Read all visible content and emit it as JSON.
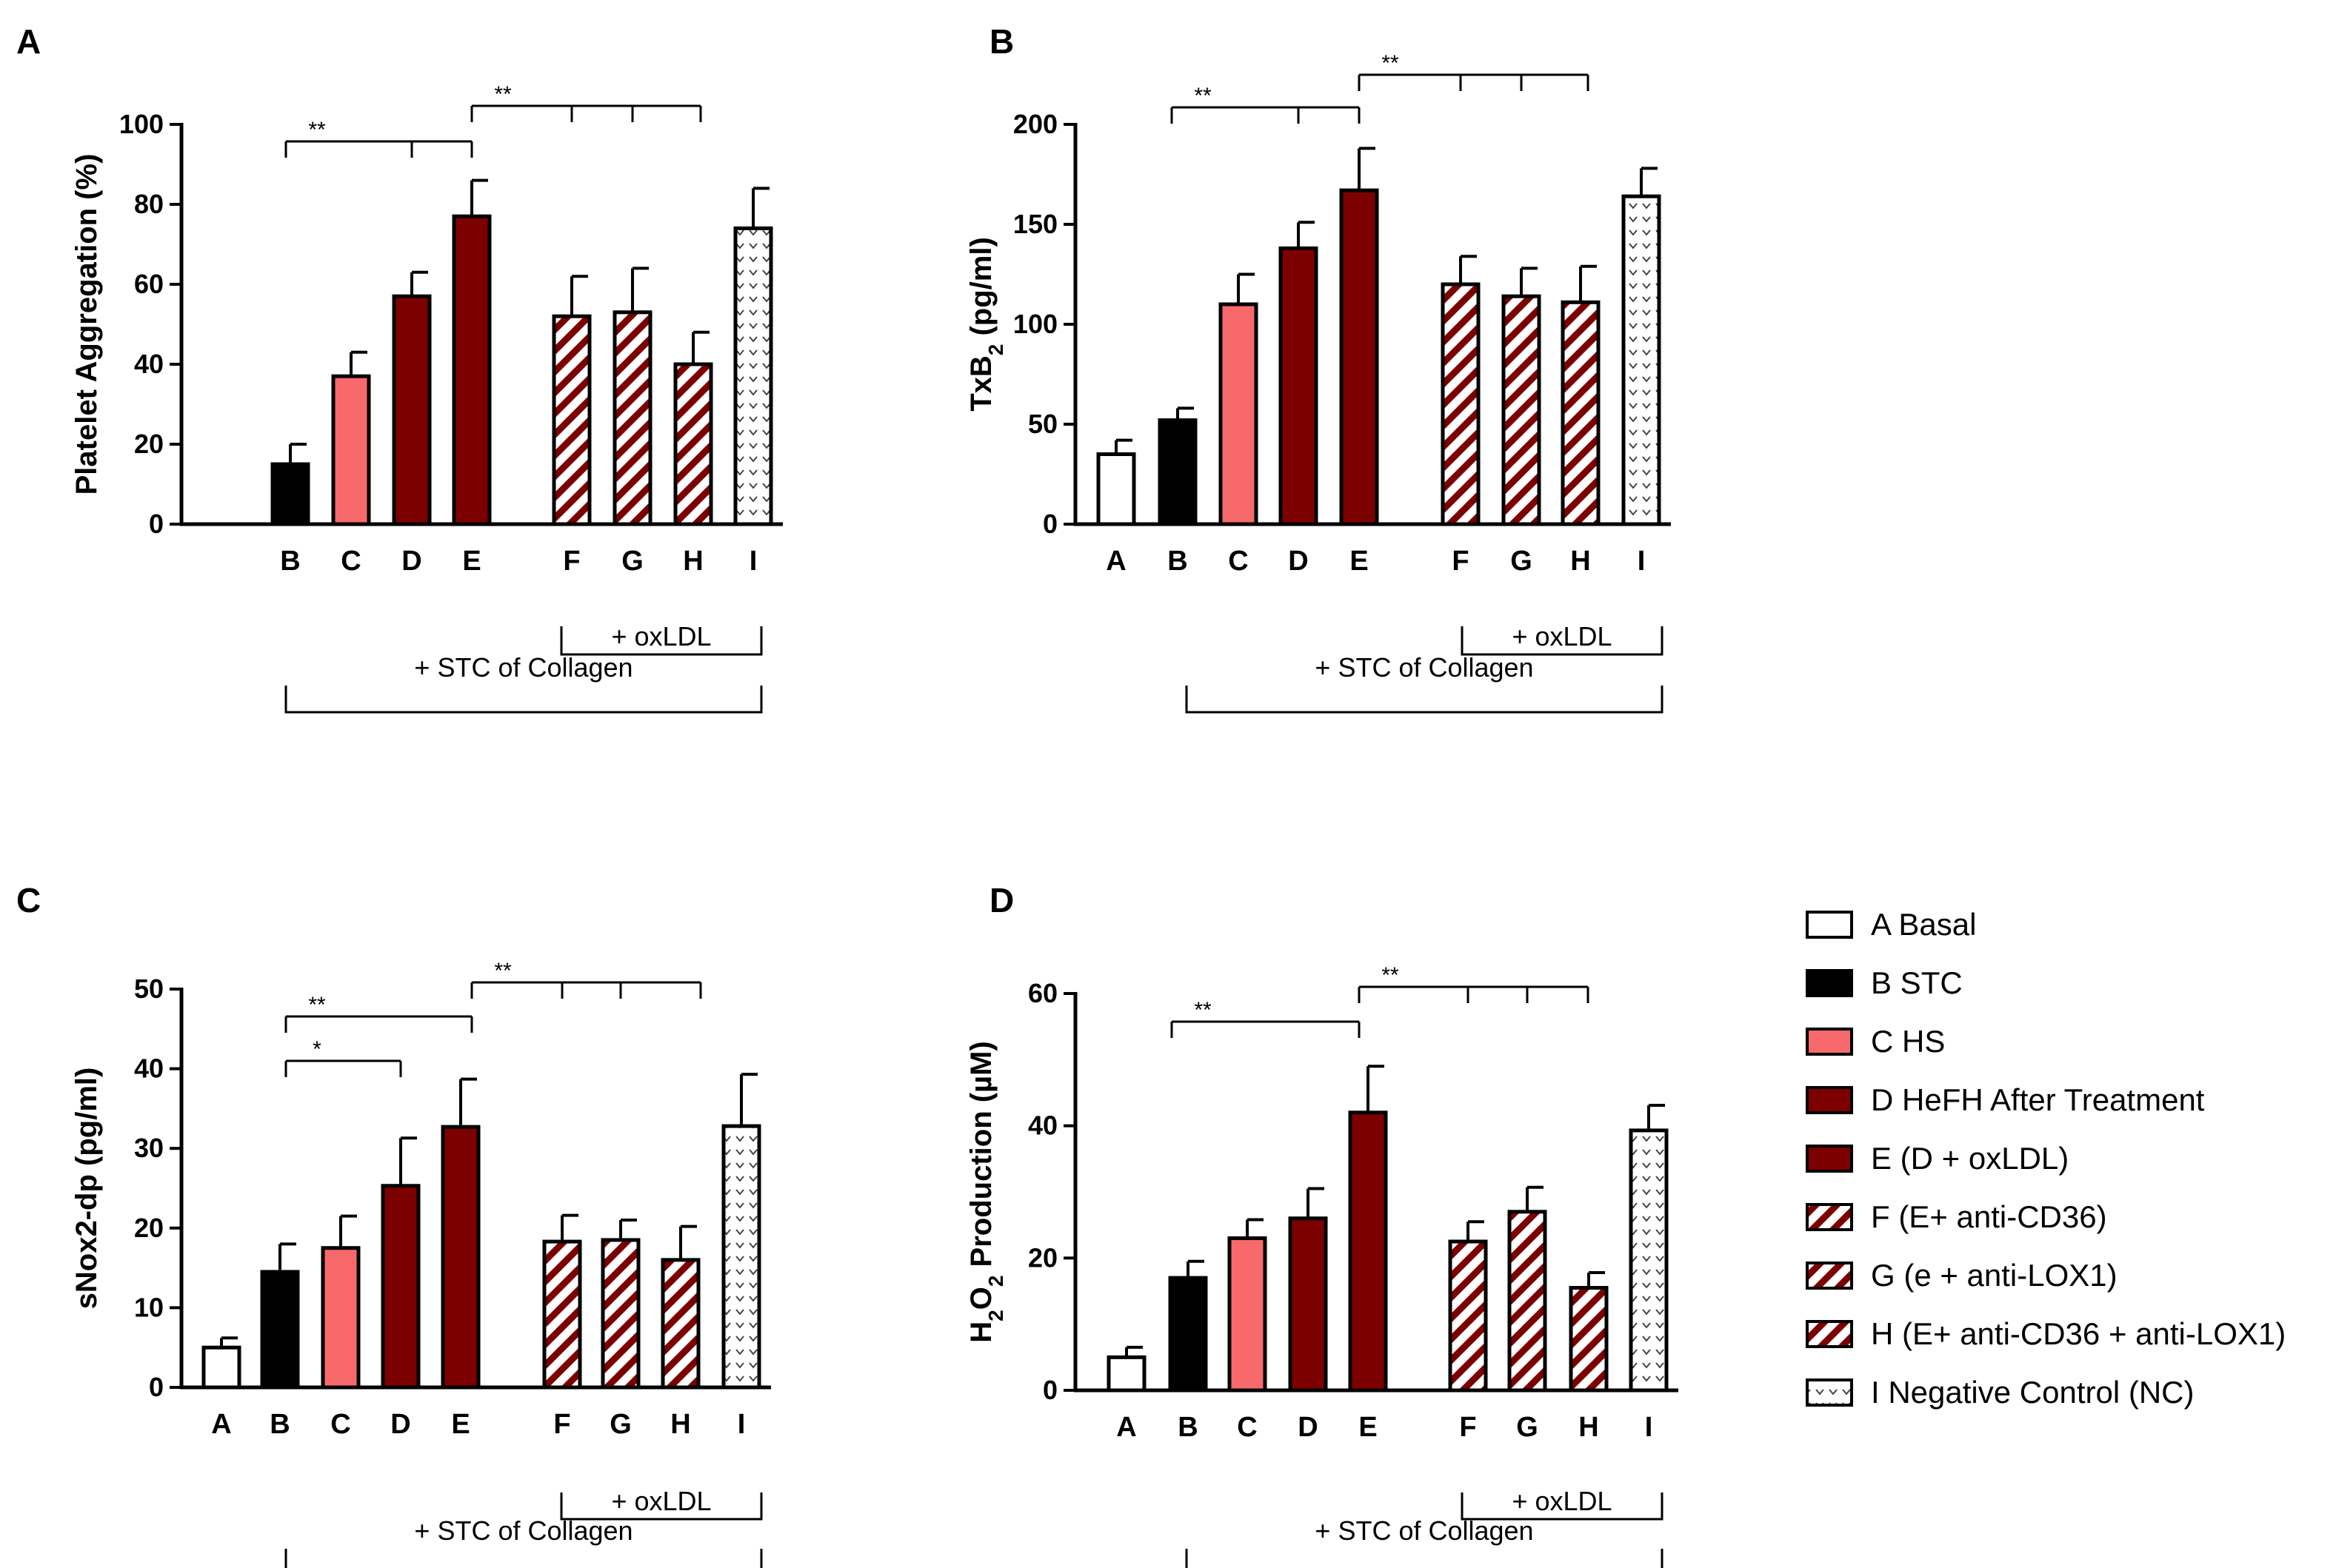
{
  "legend": [
    {
      "key": "A",
      "label": " A Basal",
      "fill": "white"
    },
    {
      "key": "B",
      "label": "B STC",
      "fill": "black"
    },
    {
      "key": "C",
      "label": "C HS",
      "fill": "salmon"
    },
    {
      "key": "D",
      "label": "D HeFH After Treatment",
      "fill": "darkred"
    },
    {
      "key": "E",
      "label": "E (D + oxLDL)",
      "fill": "darkred"
    },
    {
      "key": "F",
      "label": "F (E+ anti-CD36)",
      "fill": "hatch"
    },
    {
      "key": "G",
      "label": "G (e + anti-LOX1)",
      "fill": "hatch"
    },
    {
      "key": "H",
      "label": "H (E+ anti-CD36 + anti-LOX1)",
      "fill": "hatch"
    },
    {
      "key": "I",
      "label": "I Negative Control (NC)",
      "fill": "dots"
    }
  ],
  "colors": {
    "black": "#000000",
    "salmon": "#f8696b",
    "darkred": "#7d0000",
    "white": "#ffffff"
  },
  "group_labels": {
    "oxldl": "+ oxLDL",
    "collagen": "+ STC of Collagen"
  },
  "chart_data": [
    {
      "panel": "A",
      "type": "bar",
      "ylabel": "Platelet Aggregation (%)",
      "ylim": [
        0,
        100
      ],
      "yticks": [
        "0",
        "20",
        "40",
        "60",
        "80",
        "100"
      ],
      "categories": [
        "B",
        "C",
        "D",
        "E",
        "F",
        "G",
        "H",
        "I"
      ],
      "values": [
        15,
        37,
        57,
        77,
        52,
        53,
        40,
        74
      ],
      "errors": [
        5,
        6,
        6,
        9,
        10,
        11,
        8,
        10
      ],
      "significance": [
        {
          "label": "**",
          "from": "B",
          "to": "E",
          "ticks": [
            "D"
          ]
        },
        {
          "label": "**",
          "from": "E",
          "to": "H",
          "ticks": [
            "F",
            "G"
          ]
        }
      ]
    },
    {
      "panel": "B",
      "type": "bar",
      "ylabel": "TxB2 (pg/ml)",
      "ylabel_main": "TxB",
      "ylabel_sub": "2",
      "ylabel_rest": " (pg/ml)",
      "ylim": [
        0,
        200
      ],
      "yticks": [
        "0",
        "50",
        "100",
        "150",
        "200"
      ],
      "categories": [
        "A",
        "B",
        "C",
        "D",
        "E",
        "F",
        "G",
        "H",
        "I"
      ],
      "values": [
        35,
        52,
        110,
        138,
        167,
        120,
        114,
        111,
        164
      ],
      "errors": [
        7,
        6,
        15,
        13,
        21,
        14,
        14,
        18,
        14
      ],
      "significance": [
        {
          "label": "**",
          "from": "B",
          "to": "E",
          "ticks": [
            "D"
          ]
        },
        {
          "label": "**",
          "from": "E",
          "to": "H",
          "ticks": [
            "F",
            "G"
          ]
        }
      ]
    },
    {
      "panel": "C",
      "type": "bar",
      "ylabel": "sNox2-dp (pg/ml)",
      "ylim": [
        0,
        50
      ],
      "yticks": [
        "0",
        "10",
        "20",
        "30",
        "40",
        "50"
      ],
      "categories": [
        "A",
        "B",
        "C",
        "D",
        "E",
        "F",
        "G",
        "H",
        "I"
      ],
      "values": [
        5,
        14.5,
        17.5,
        25.3,
        32.7,
        18.3,
        18.5,
        16,
        32.8
      ],
      "errors": [
        1.2,
        3.5,
        4,
        6,
        6,
        3.3,
        2.5,
        4.2,
        6.5
      ],
      "significance": [
        {
          "label": "*",
          "from": "B",
          "to": "D",
          "ticks": []
        },
        {
          "label": "**",
          "from": "B",
          "to": "E",
          "ticks": []
        },
        {
          "label": "**",
          "from": "E",
          "to": "H",
          "ticks": [
            "F",
            "G"
          ]
        }
      ]
    },
    {
      "panel": "D",
      "type": "bar",
      "ylabel": "H2O2 Production (µM)",
      "ylabel_parts": [
        "H",
        "2",
        "O",
        "2",
        " Production (µM)"
      ],
      "ylim": [
        0,
        60
      ],
      "yticks": [
        "0",
        "20",
        "40",
        "60"
      ],
      "categories": [
        "A",
        "B",
        "C",
        "D",
        "E",
        "F",
        "G",
        "H",
        "I"
      ],
      "values": [
        5,
        17,
        23,
        26,
        42,
        22.5,
        27,
        15.5,
        39.3
      ],
      "errors": [
        1.5,
        2.5,
        2.8,
        4.5,
        7,
        3,
        3.7,
        2.3,
        3.8
      ],
      "significance": [
        {
          "label": "**",
          "from": "B",
          "to": "E",
          "ticks": []
        },
        {
          "label": "**",
          "from": "E",
          "to": "H",
          "ticks": [
            "F",
            "G"
          ]
        }
      ]
    }
  ]
}
